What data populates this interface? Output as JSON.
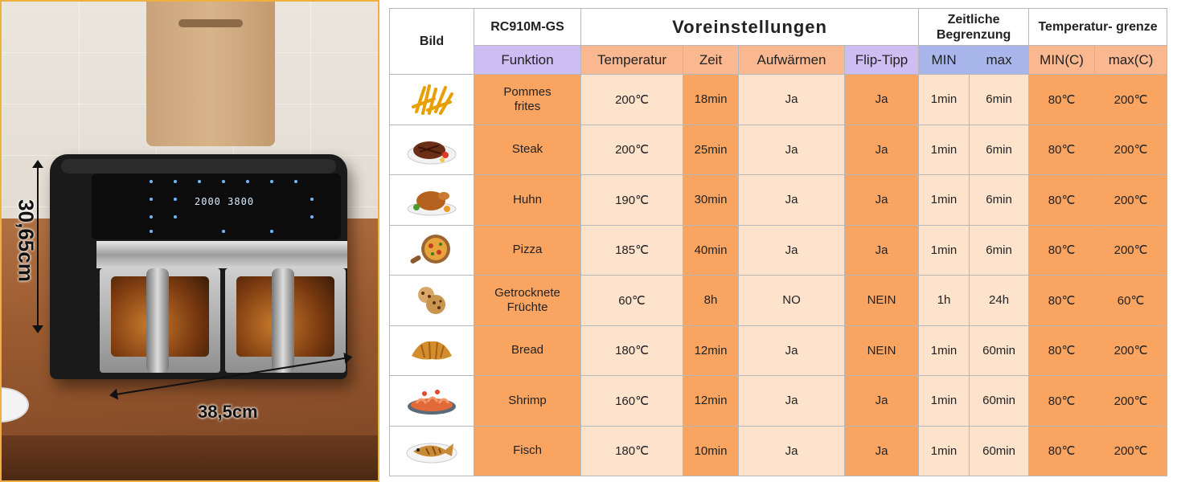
{
  "photo": {
    "height_label": "30,65cm",
    "width_label": "38,5cm",
    "display_left": "2000",
    "display_right": "3800"
  },
  "table": {
    "header": {
      "bild": "Bild",
      "model": "RC910M-GS",
      "presets": "Voreinstellungen",
      "time_limit": "Zeitliche Begrenzung",
      "temp_limit": "Temperatur- grenze"
    },
    "subheader": {
      "funktion": "Funktion",
      "temperatur": "Temperatur",
      "zeit": "Zeit",
      "aufwaermen": "Aufwärmen",
      "flip": "Flip-Tipp",
      "min": "MIN",
      "max": "max",
      "min_c": "MIN(C)",
      "max_c": "max(C)"
    },
    "rows": [
      {
        "icon": "fries-icon",
        "funktion": "Pommes frites",
        "temperatur": "200℃",
        "zeit": "18min",
        "aufwaermen": "Ja",
        "flip": "Ja",
        "min": "1min",
        "max": "6min",
        "min_c": "80℃",
        "max_c": "200℃"
      },
      {
        "icon": "steak-icon",
        "funktion": "Steak",
        "temperatur": "200℃",
        "zeit": "25min",
        "aufwaermen": "Ja",
        "flip": "Ja",
        "min": "1min",
        "max": "6min",
        "min_c": "80℃",
        "max_c": "200℃"
      },
      {
        "icon": "chicken-icon",
        "funktion": "Huhn",
        "temperatur": "190℃",
        "zeit": "30min",
        "aufwaermen": "Ja",
        "flip": "Ja",
        "min": "1min",
        "max": "6min",
        "min_c": "80℃",
        "max_c": "200℃"
      },
      {
        "icon": "pizza-icon",
        "funktion": "Pizza",
        "temperatur": "185℃",
        "zeit": "40min",
        "aufwaermen": "Ja",
        "flip": "Ja",
        "min": "1min",
        "max": "6min",
        "min_c": "80℃",
        "max_c": "200℃"
      },
      {
        "icon": "cookies-icon",
        "funktion": "Getrocknete Früchte",
        "temperatur": "60℃",
        "zeit": "8h",
        "aufwaermen": "NO",
        "flip": "NEIN",
        "min": "1h",
        "max": "24h",
        "min_c": "80℃",
        "max_c": "60℃"
      },
      {
        "icon": "croissant-icon",
        "funktion": "Bread",
        "temperatur": "180℃",
        "zeit": "12min",
        "aufwaermen": "Ja",
        "flip": "NEIN",
        "min": "1min",
        "max": "60min",
        "min_c": "80℃",
        "max_c": "200℃"
      },
      {
        "icon": "shrimp-icon",
        "funktion": "Shrimp",
        "temperatur": "160℃",
        "zeit": "12min",
        "aufwaermen": "Ja",
        "flip": "Ja",
        "min": "1min",
        "max": "60min",
        "min_c": "80℃",
        "max_c": "200℃"
      },
      {
        "icon": "fish-icon",
        "funktion": "Fisch",
        "temperatur": "180℃",
        "zeit": "10min",
        "aufwaermen": "Ja",
        "flip": "Ja",
        "min": "1min",
        "max": "60min",
        "min_c": "80℃",
        "max_c": "200℃"
      }
    ]
  },
  "colors": {
    "dark_orange": "#f9a561",
    "light_peach": "#fde3cc",
    "lavender": "#cdbdf2",
    "blue": "#a9b6ec",
    "border_gold": "#f0b040"
  }
}
